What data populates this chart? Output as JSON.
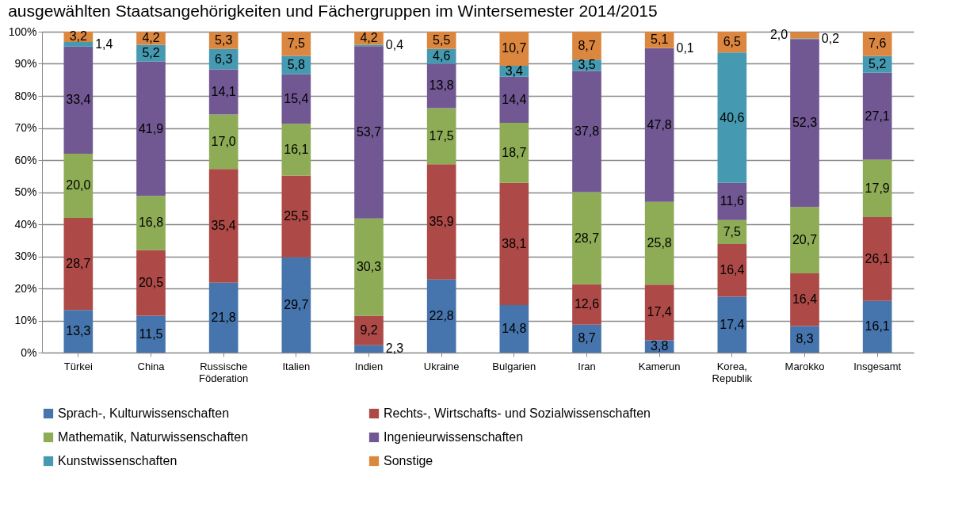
{
  "chart_data": {
    "type": "bar",
    "stacked": true,
    "title": "ausgewählten Staatsangehörigkeiten und Fächergruppen im Wintersemester 2014/2015",
    "categories": [
      "Türkei",
      "China",
      "Russische Föderation",
      "Italien",
      "Indien",
      "Ukraine",
      "Bulgarien",
      "Iran",
      "Kamerun",
      "Korea, Republik",
      "Marokko",
      "Insgesamt"
    ],
    "series": [
      {
        "name": "Sprach-, Kulturwissenschaften",
        "color": "#4674ac",
        "values": [
          13.3,
          11.5,
          21.8,
          29.7,
          2.3,
          22.8,
          14.8,
          8.7,
          3.8,
          17.4,
          8.3,
          16.1
        ],
        "value_labels": [
          "13,3",
          "11,5",
          "21,8",
          "29,7",
          "2,3",
          "22,8",
          "14,8",
          "8,7",
          "3,8",
          "17,4",
          "8,3",
          "16,1"
        ]
      },
      {
        "name": "Rechts-, Wirtschafts- und Sozialwissenschaften",
        "color": "#ad4a47",
        "values": [
          28.7,
          20.5,
          35.4,
          25.5,
          9.2,
          35.9,
          38.1,
          12.6,
          17.4,
          16.4,
          16.4,
          26.1
        ],
        "value_labels": [
          "28,7",
          "20,5",
          "35,4",
          "25,5",
          "9,2",
          "35,9",
          "38,1",
          "12,6",
          "17,4",
          "16,4",
          "16,4",
          "26,1"
        ]
      },
      {
        "name": "Mathematik, Naturwissenschaften",
        "color": "#8eac55",
        "values": [
          20.0,
          16.8,
          17.0,
          16.1,
          30.3,
          17.5,
          18.7,
          28.7,
          25.8,
          7.5,
          20.7,
          17.9
        ],
        "value_labels": [
          "20,0",
          "16,8",
          "17,0",
          "16,1",
          "30,3",
          "17,5",
          "18,7",
          "28,7",
          "25,8",
          "7,5",
          "20,7",
          "17,9"
        ]
      },
      {
        "name": "Ingenieurwissenschaften",
        "color": "#715892",
        "values": [
          33.4,
          41.9,
          14.1,
          15.4,
          53.7,
          13.8,
          14.4,
          37.8,
          47.8,
          11.6,
          52.3,
          27.1
        ],
        "value_labels": [
          "33,4",
          "41,9",
          "14,1",
          "15,4",
          "53,7",
          "13,8",
          "14,4",
          "37,8",
          "47,8",
          "11,6",
          "52,3",
          "27,1"
        ]
      },
      {
        "name": "Kunstwissenschaften",
        "color": "#4599b1",
        "values": [
          1.4,
          5.2,
          6.3,
          5.8,
          0.4,
          4.6,
          3.4,
          3.5,
          0.1,
          40.6,
          0.2,
          5.2
        ],
        "value_labels": [
          "1,4",
          "5,2",
          "6,3",
          "5,8",
          "0,4",
          "4,6",
          "3,4",
          "3,5",
          "0,1",
          "40,6",
          "0,2",
          "5,2"
        ]
      },
      {
        "name": "Sonstige",
        "color": "#dc873f",
        "values": [
          3.2,
          4.2,
          5.3,
          7.5,
          4.2,
          5.5,
          10.7,
          8.7,
          5.1,
          6.5,
          2.0,
          7.6
        ],
        "value_labels": [
          "3,2",
          "4,2",
          "5,3",
          "7,5",
          "4,2",
          "5,5",
          "10,7",
          "8,7",
          "5,1",
          "6,5",
          "2,0",
          "7,6"
        ]
      }
    ],
    "ylim": [
      0,
      100
    ],
    "yticks": [
      {
        "value": 0,
        "label": "0%"
      },
      {
        "value": 10,
        "label": "10%"
      },
      {
        "value": 20,
        "label": "20%"
      },
      {
        "value": 30,
        "label": "30%"
      },
      {
        "value": 40,
        "label": "40%"
      },
      {
        "value": 50,
        "label": "50%"
      },
      {
        "value": 60,
        "label": "60%"
      },
      {
        "value": 70,
        "label": "70%"
      },
      {
        "value": 80,
        "label": "80%"
      },
      {
        "value": 90,
        "label": "90%"
      },
      {
        "value": 100,
        "label": "100%"
      }
    ],
    "grid": "y",
    "legend": "bottom"
  }
}
